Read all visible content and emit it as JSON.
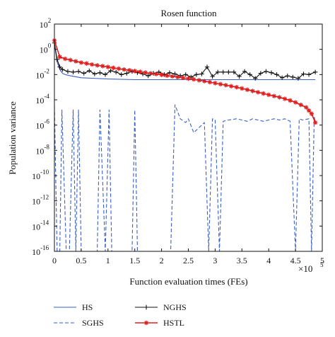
{
  "chart_data": {
    "type": "line",
    "title": "Rosen function",
    "xlabel": "Function evaluation times (FEs)",
    "ylabel": "Population variance",
    "x_multiplier": "×10",
    "x_multiplier_exp": "5",
    "xlim": [
      0,
      5
    ],
    "ylog": true,
    "ylim_exp": [
      -16,
      2
    ],
    "x_ticks": [
      "0",
      "0.5",
      "1",
      "1.5",
      "2",
      "2.5",
      "3",
      "3.5",
      "4",
      "4.5",
      "5"
    ],
    "y_ticks": [
      {
        "base": "10",
        "exp": "2"
      },
      {
        "base": "10",
        "exp": "0"
      },
      {
        "base": "10",
        "exp": "-2"
      },
      {
        "base": "10",
        "exp": "-4"
      },
      {
        "base": "10",
        "exp": "-6"
      },
      {
        "base": "10",
        "exp": "-8"
      },
      {
        "base": "10",
        "exp": "-10"
      },
      {
        "base": "10",
        "exp": "-12"
      },
      {
        "base": "10",
        "exp": "-14"
      },
      {
        "base": "10",
        "exp": "-16"
      }
    ],
    "grid": false,
    "legend_position": "bottom",
    "series": [
      {
        "name": "HS",
        "color": "#3a5fc8",
        "style": "solid",
        "marker": "none",
        "x": [
          0,
          0.05,
          0.1,
          0.15,
          0.2,
          0.3,
          0.5,
          1,
          1.5,
          2,
          2.5,
          3,
          3.5,
          4,
          4.5,
          4.87
        ],
        "y_exp": [
          0.5,
          -1,
          -1.6,
          -1.9,
          -2.0,
          -2.1,
          -2.25,
          -2.35,
          -2.4,
          -2.4,
          -2.4,
          -2.4,
          -2.4,
          -2.4,
          -2.4,
          -2.4
        ]
      },
      {
        "name": "SGHS",
        "color": "#3a5fc8",
        "style": "dashed",
        "marker": "none",
        "x": [
          0,
          0.05,
          0.1,
          0.14,
          0.22,
          0.28,
          0.35,
          0.4,
          0.45,
          0.5,
          0.55,
          0.6,
          0.7,
          0.8,
          0.85,
          0.95,
          1.02,
          1.07,
          1.15,
          1.25,
          1.35,
          1.45,
          1.5,
          1.55,
          1.6,
          1.7,
          1.8,
          1.9,
          2.0,
          2.1,
          2.17,
          2.25,
          2.35,
          2.45,
          2.5,
          2.6,
          2.7,
          2.8,
          2.88,
          2.95,
          3.0,
          3.08,
          3.15,
          3.25,
          3.4,
          3.5,
          3.6,
          3.7,
          3.8,
          3.9,
          4.0,
          4.1,
          4.2,
          4.3,
          4.4,
          4.5,
          4.57,
          4.63,
          4.75,
          4.8,
          4.85,
          4.87
        ],
        "y_exp": [
          -4.5,
          -16,
          -16,
          -4.8,
          -16,
          -16,
          -4.8,
          -16,
          -4.8,
          -16,
          -16,
          -16,
          -16,
          -16,
          -4.8,
          -16,
          -4.8,
          -16,
          -16,
          -16,
          -16,
          -16,
          -4.8,
          -16,
          -16,
          -16,
          -16,
          -16,
          -16,
          -16,
          -16,
          -4.4,
          -5.5,
          -5.8,
          -5.5,
          -6.6,
          -6.2,
          -5.8,
          -16,
          -5.5,
          -5.6,
          -16,
          -5.7,
          -5.6,
          -5.5,
          -5.6,
          -5.7,
          -5.5,
          -5.6,
          -5.7,
          -5.6,
          -5.5,
          -5.6,
          -5.5,
          -5.7,
          -16,
          -5.5,
          -5.6,
          -5.5,
          -16,
          -5.3,
          -5.8
        ]
      },
      {
        "name": "NGHS",
        "color": "#111111",
        "style": "solid",
        "marker": "plus",
        "x": [
          0,
          0.05,
          0.1,
          0.15,
          0.25,
          0.35,
          0.45,
          0.55,
          0.65,
          0.75,
          0.85,
          0.95,
          1.05,
          1.15,
          1.25,
          1.35,
          1.45,
          1.55,
          1.65,
          1.75,
          1.85,
          1.95,
          2.05,
          2.15,
          2.25,
          2.35,
          2.45,
          2.55,
          2.65,
          2.75,
          2.85,
          2.95,
          3.05,
          3.15,
          3.25,
          3.35,
          3.45,
          3.55,
          3.65,
          3.75,
          3.85,
          3.95,
          4.05,
          4.15,
          4.25,
          4.35,
          4.45,
          4.55,
          4.65,
          4.75,
          4.87
        ],
        "y_exp": [
          0.5,
          -0.8,
          -1.4,
          -1.6,
          -1.75,
          -1.8,
          -1.75,
          -1.9,
          -1.7,
          -1.95,
          -1.85,
          -2.0,
          -1.7,
          -1.8,
          -2.0,
          -1.9,
          -1.75,
          -1.85,
          -1.95,
          -2.1,
          -1.9,
          -1.8,
          -2.0,
          -1.85,
          -1.95,
          -2.1,
          -2.0,
          -2.2,
          -2.0,
          -1.95,
          -1.4,
          -2.15,
          -1.8,
          -1.8,
          -1.8,
          -1.8,
          -2.15,
          -1.75,
          -2.0,
          -2.3,
          -1.9,
          -1.75,
          -1.85,
          -2.0,
          -2.25,
          -2.1,
          -2.2,
          -2.3,
          -1.95,
          -2.0,
          -1.8
        ]
      },
      {
        "name": "HSTL",
        "color": "#e01e1e",
        "style": "solid",
        "marker": "star",
        "x": [
          0,
          0.1,
          0.2,
          0.3,
          0.4,
          0.5,
          0.6,
          0.7,
          0.8,
          0.9,
          1.0,
          1.1,
          1.2,
          1.3,
          1.4,
          1.5,
          1.6,
          1.7,
          1.8,
          1.9,
          2.0,
          2.1,
          2.2,
          2.3,
          2.4,
          2.5,
          2.6,
          2.7,
          2.8,
          2.9,
          3.0,
          3.1,
          3.2,
          3.3,
          3.4,
          3.5,
          3.6,
          3.7,
          3.8,
          3.9,
          4.0,
          4.1,
          4.2,
          4.3,
          4.4,
          4.5,
          4.6,
          4.7,
          4.75,
          4.8,
          4.87
        ],
        "y_exp": [
          0.7,
          -0.6,
          -0.75,
          -0.85,
          -0.95,
          -1.05,
          -1.12,
          -1.2,
          -1.27,
          -1.33,
          -1.4,
          -1.47,
          -1.53,
          -1.6,
          -1.66,
          -1.72,
          -1.78,
          -1.84,
          -1.9,
          -1.96,
          -2.02,
          -2.08,
          -2.14,
          -2.2,
          -2.26,
          -2.32,
          -2.38,
          -2.45,
          -2.52,
          -2.6,
          -2.68,
          -2.76,
          -2.84,
          -2.92,
          -3.0,
          -3.1,
          -3.2,
          -3.3,
          -3.4,
          -3.5,
          -3.6,
          -3.7,
          -3.8,
          -3.92,
          -4.05,
          -4.2,
          -4.4,
          -4.6,
          -4.85,
          -5.1,
          -5.8
        ]
      }
    ]
  }
}
